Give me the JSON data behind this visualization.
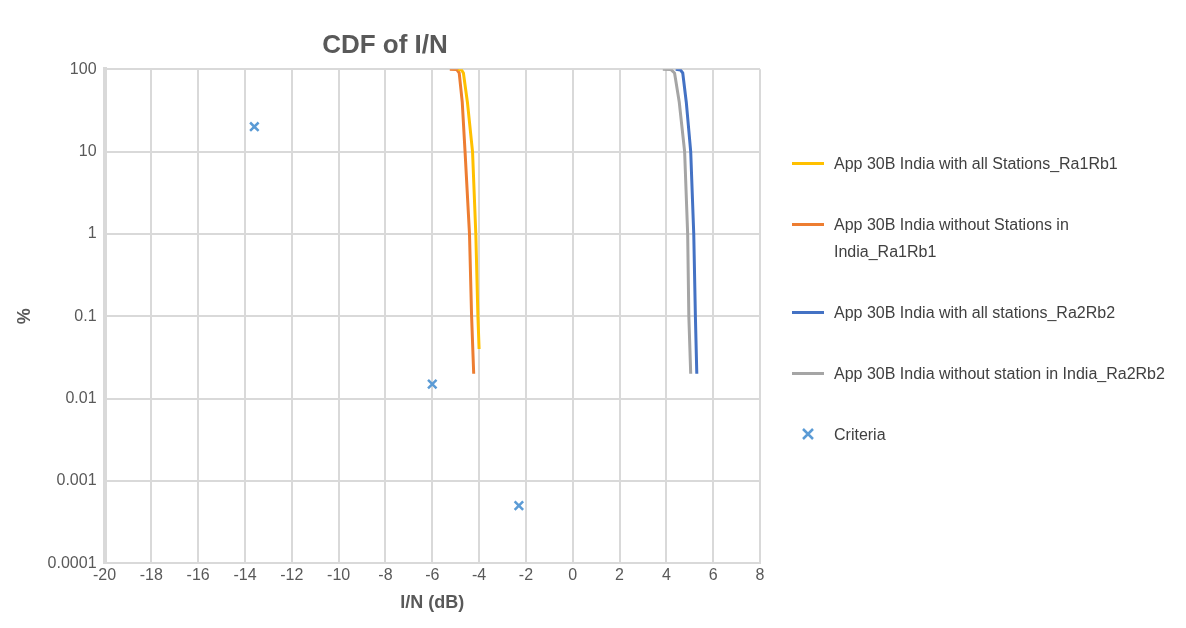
{
  "chart_data": {
    "type": "line",
    "title": "CDF of I/N",
    "xlabel": "I/N (dB)",
    "ylabel": "%",
    "log": "y",
    "grid": true,
    "legend": "right",
    "xlim": [
      -20,
      8
    ],
    "xticks": [
      -20,
      -18,
      -16,
      -14,
      -12,
      -10,
      -8,
      -6,
      -4,
      -2,
      0,
      2,
      4,
      6,
      8
    ],
    "ylim": [
      0.0001,
      100
    ],
    "yticks": [
      0.0001,
      0.001,
      0.01,
      0.1,
      1,
      10,
      100
    ],
    "series": [
      {
        "name": "App 30B India with all Stations_Ra1Rb1",
        "type": "line",
        "marker": "none",
        "color": "#ffc000",
        "x": [
          -4.9,
          -4.75,
          -4.67,
          -4.5,
          -4.28,
          -4.14,
          -4.05,
          -4.0
        ],
        "values": [
          100,
          98,
          90,
          40,
          10,
          1,
          0.1,
          0.04
        ]
      },
      {
        "name": "App 30B India without Stations in India_Ra1Rb1",
        "type": "line",
        "marker": "none",
        "color": "#ed7d31",
        "x": [
          -5.25,
          -4.95,
          -4.85,
          -4.72,
          -4.6,
          -4.41,
          -4.32,
          -4.23
        ],
        "values": [
          100,
          99,
          90,
          40,
          10,
          1,
          0.1,
          0.02
        ]
      },
      {
        "name": "App 30B India with all stations_Ra2Rb2",
        "type": "line",
        "marker": "none",
        "color": "#4472c4",
        "x": [
          4.4,
          4.6,
          4.7,
          4.85,
          5.04,
          5.17,
          5.24,
          5.3
        ],
        "values": [
          100,
          98,
          90,
          40,
          10,
          1,
          0.1,
          0.02
        ]
      },
      {
        "name": "App 30B India without station in India_Ra2Rb2",
        "type": "line",
        "marker": "none",
        "color": "#a5a5a5",
        "x": [
          3.85,
          4.2,
          4.35,
          4.55,
          4.78,
          4.91,
          4.96,
          5.04
        ],
        "values": [
          100,
          99,
          90,
          40,
          10,
          1,
          0.1,
          0.02
        ]
      },
      {
        "name": "Criteria",
        "type": "scatter",
        "marker": "cross",
        "color": "#5b9bd5",
        "x": [
          -13.6,
          -6,
          -2.3
        ],
        "values": [
          20,
          0.015,
          0.0005
        ]
      }
    ]
  }
}
